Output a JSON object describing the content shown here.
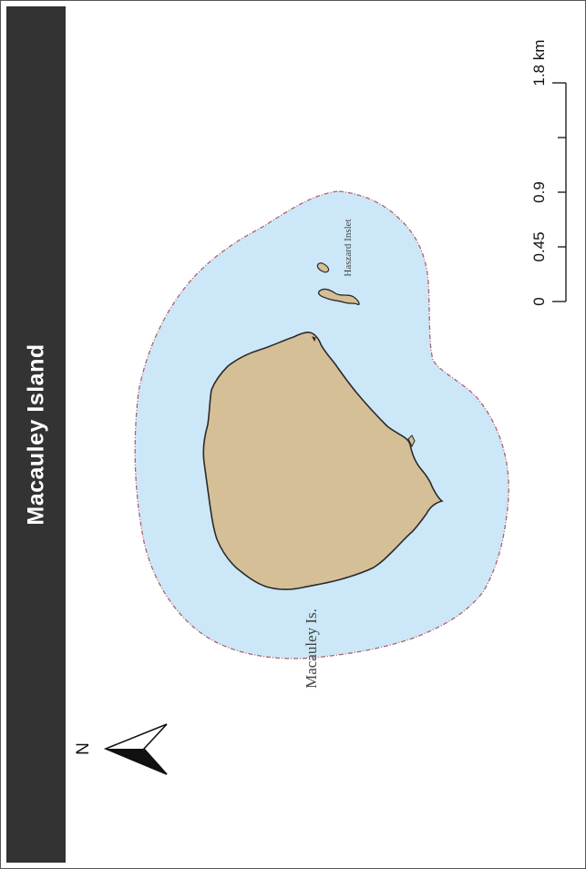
{
  "title": "Macauley Island",
  "labels": {
    "main_island": "Macauley Is.",
    "islet": "Haszard Inslet"
  },
  "scale_bar": {
    "ticks": [
      "0",
      "0.45",
      "0.9",
      "1.8 km"
    ]
  },
  "north_arrow": {
    "letter": "N"
  },
  "colors": {
    "water": "#cce8f8",
    "land": "#d5bf97",
    "coast": "#2a2a2a",
    "boundary": "#b06070",
    "title_bar": "#333333"
  }
}
